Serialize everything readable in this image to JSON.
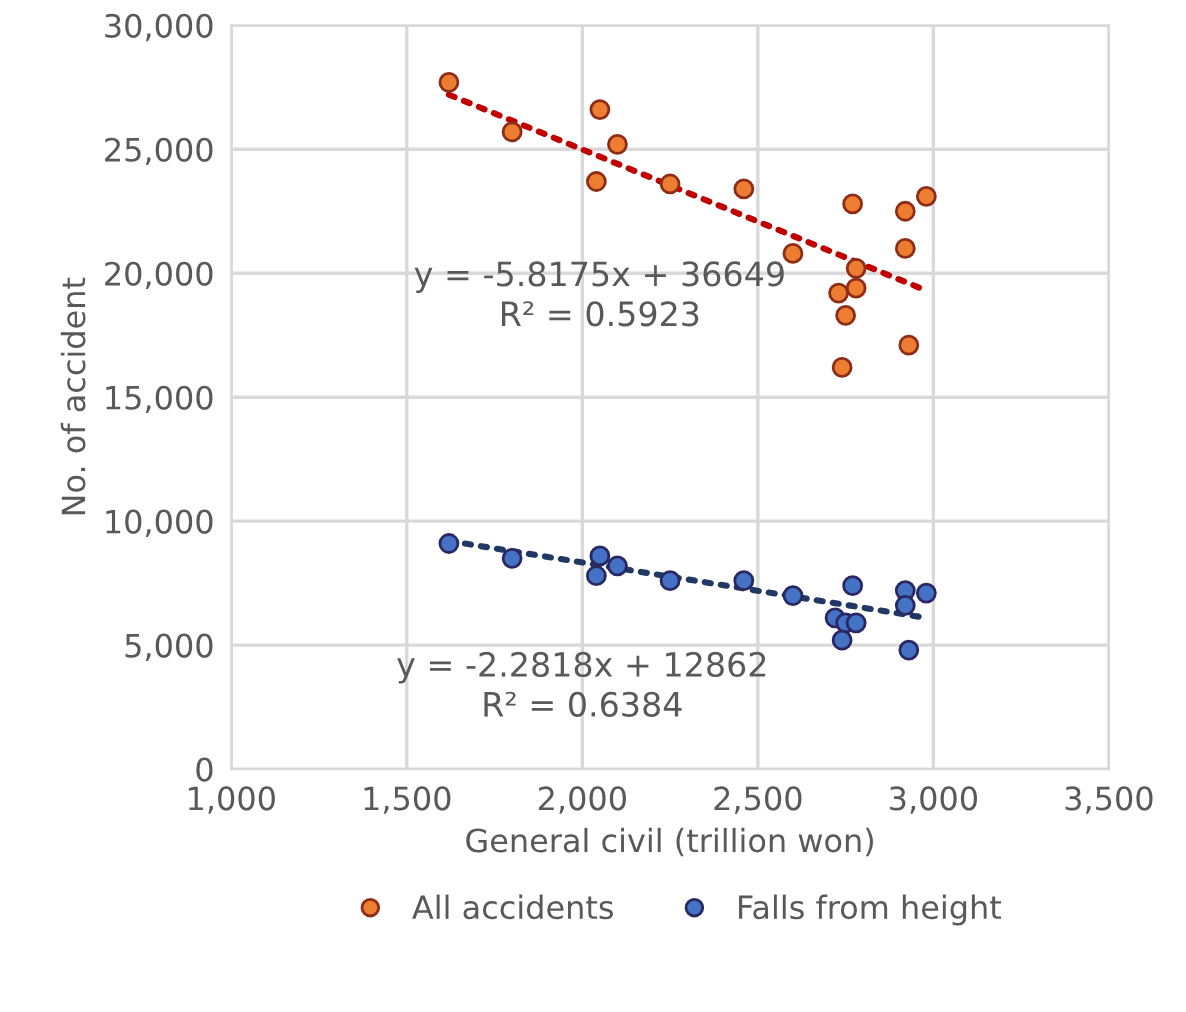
{
  "chart_data": {
    "type": "scatter",
    "xlabel": "General civil (trillion won)",
    "ylabel": "No. of accident",
    "xlim": [
      1000,
      3500
    ],
    "xticks": [
      {
        "value": 1000,
        "label": "1,000"
      },
      {
        "value": 1500,
        "label": "1,500"
      },
      {
        "value": 2000,
        "label": "2,000"
      },
      {
        "value": 2500,
        "label": "2,500"
      },
      {
        "value": 3000,
        "label": "3,000"
      },
      {
        "value": 3500,
        "label": "3,500"
      }
    ],
    "ylim": [
      0,
      30000
    ],
    "yticks": [
      0,
      {
        "value": 5000,
        "label": "5,000"
      },
      {
        "value": 10000,
        "label": "10,000"
      },
      {
        "value": 15000,
        "label": "15,000"
      },
      {
        "value": 20000,
        "label": "20,000"
      },
      {
        "value": 25000,
        "label": "25,000"
      },
      {
        "value": 30000,
        "label": "30,000"
      }
    ],
    "grid": true,
    "legend": "bottom",
    "marker": "circle",
    "series": [
      {
        "name": "All accidents",
        "color": "#ed7d31",
        "x": [
          1620,
          1800,
          2050,
          2100,
          2040,
          2250,
          2460,
          2600,
          2770,
          2780,
          2780,
          2730,
          2750,
          2740,
          2920,
          2980,
          2920,
          2930
        ],
        "values": [
          27700,
          25700,
          26600,
          25200,
          23700,
          23600,
          23400,
          20800,
          22800,
          20200,
          19400,
          19200,
          18300,
          16200,
          22500,
          23100,
          21000,
          17100
        ]
      },
      {
        "name": "Falls from height",
        "color": "#4472c4",
        "x": [
          1620,
          1800,
          2050,
          2040,
          2100,
          2250,
          2460,
          2600,
          2770,
          2720,
          2750,
          2780,
          2740,
          2920,
          2920,
          2980,
          2930
        ],
        "values": [
          9100,
          8500,
          8600,
          7800,
          8200,
          7600,
          7600,
          7000,
          7400,
          6100,
          5900,
          5900,
          5200,
          7200,
          6600,
          7100,
          4800
        ]
      },
      {
        "type": "line",
        "marker": "none",
        "color": "#c00000",
        "line_style": "dotted",
        "x": [
          1620,
          2980
        ],
        "values": [
          27200,
          19300
        ]
      },
      {
        "type": "line",
        "marker": "none",
        "color": "#1f3864",
        "line_style": "dotted",
        "x": [
          1620,
          2980
        ],
        "values": [
          9200,
          6100
        ]
      }
    ],
    "annotations": [
      "y = -5.8175x + 36649\nR² = 0.5923",
      "y = -2.2818x + 12862\nR² = 0.6384"
    ]
  }
}
